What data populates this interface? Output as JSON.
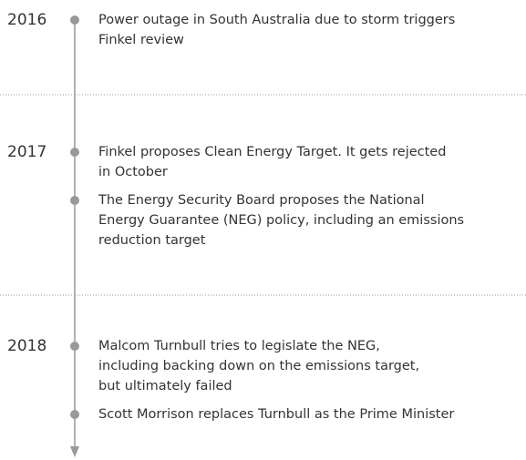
{
  "timeline": {
    "groups": [
      {
        "year": "2016",
        "events": [
          {
            "lines": [
              "Power outage in South Australia due to storm triggers",
              "Finkel review"
            ]
          }
        ]
      },
      {
        "year": "2017",
        "events": [
          {
            "lines": [
              "Finkel proposes Clean Energy Target. It gets rejected",
              "in October"
            ]
          },
          {
            "lines": [
              "The Energy Security Board proposes the National",
              "Energy Guarantee (NEG) policy, including an emissions",
              "reduction target"
            ]
          }
        ]
      },
      {
        "year": "2018",
        "events": [
          {
            "lines": [
              "Malcom Turnbull tries to legislate the NEG,",
              "including backing down on the emissions target,",
              "but ultimately failed"
            ]
          },
          {
            "lines": [
              "Scott Morrison replaces Turnbull as the Prime Minister"
            ]
          }
        ]
      }
    ]
  }
}
